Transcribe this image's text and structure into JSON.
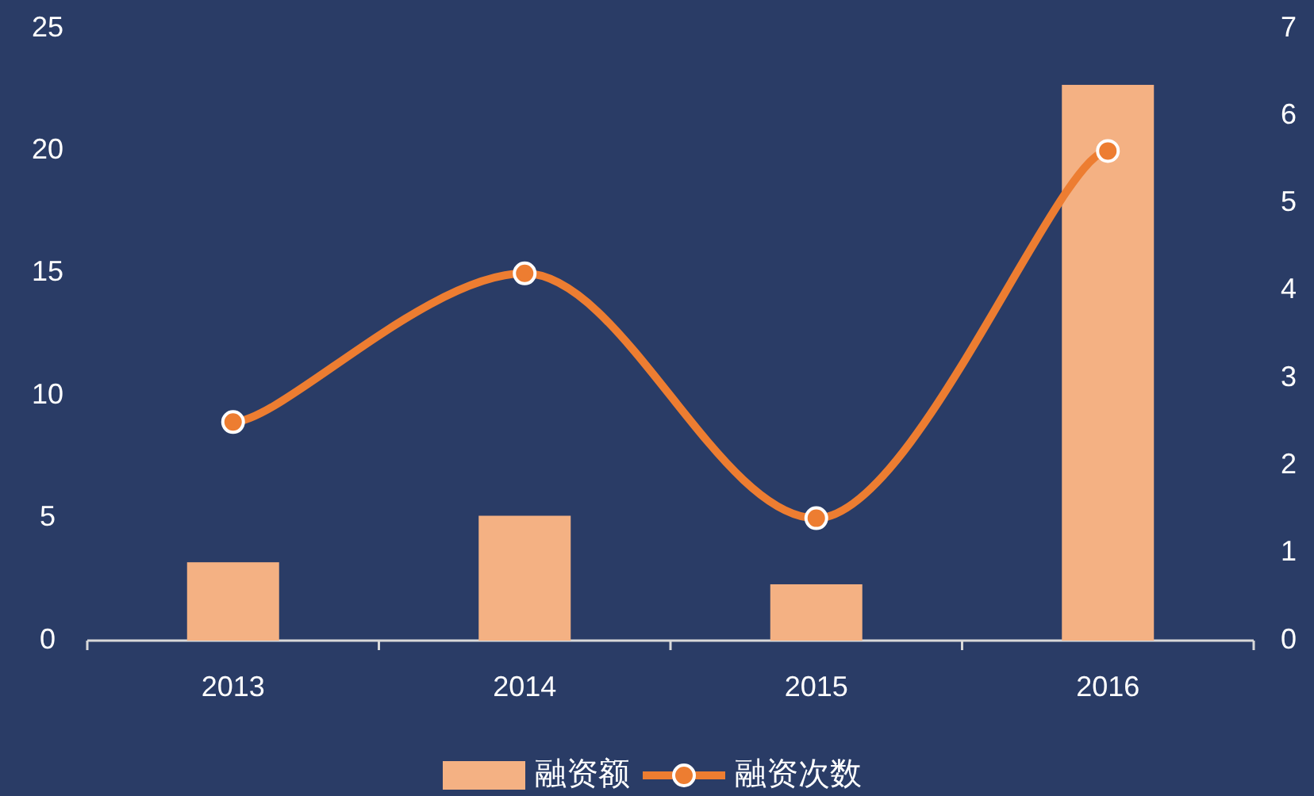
{
  "chart_data": {
    "type": "bar",
    "categories": [
      "2013",
      "2014",
      "2015",
      "2016"
    ],
    "series": [
      {
        "name": "融资额",
        "color": "#f4b183",
        "values": [
          3.2,
          5.1,
          2.3,
          22.7
        ]
      },
      {
        "name": "融资次数",
        "type": "line",
        "axis": "y2",
        "color": "#ed7d31",
        "marker": "circle",
        "values": [
          2.5,
          4.2,
          1.4,
          5.6
        ]
      }
    ],
    "ylim": [
      0,
      25
    ],
    "yticks": [
      0,
      5,
      10,
      15,
      20,
      25
    ],
    "y2lim": [
      0,
      7
    ],
    "y2ticks": [
      0,
      1,
      2,
      3,
      4,
      5,
      6,
      7
    ],
    "grid": false,
    "legend": "bottom"
  }
}
